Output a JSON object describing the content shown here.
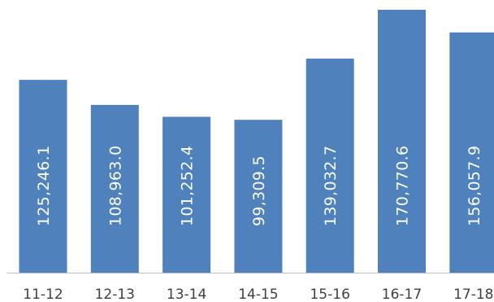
{
  "chart_data": {
    "type": "bar",
    "orientation": "vertical",
    "categories": [
      "11-12",
      "12-13",
      "13-14",
      "14-15",
      "15-16",
      "16-17",
      "17-18"
    ],
    "values": [
      125246.1,
      108963.0,
      101252.4,
      99309.5,
      139032.7,
      170770.6,
      156057.9
    ],
    "data_labels": [
      "125,246.1",
      "108,963.0",
      "101,252.4",
      "99,309.5",
      "139,032.7",
      "170,770.6",
      "156,057.9"
    ],
    "title": "",
    "xlabel": "",
    "ylabel": "",
    "ylim": [
      0,
      170770.6
    ],
    "grid": false,
    "legend": "none",
    "colors": {
      "bar": "#4f81bd",
      "label": "#ffffff",
      "tick": "#404040",
      "axis": "#bfbfbf"
    }
  }
}
